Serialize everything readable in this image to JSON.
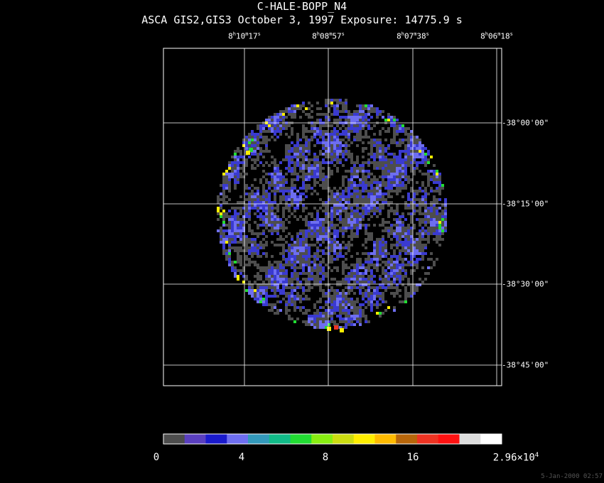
{
  "title": "C-HALE-BOPP_N4",
  "subtitle": "ASCA GIS2,GIS3 October 3, 1997 Exposure: 14775.9 s",
  "ra_ticks": [
    {
      "h": "8",
      "m": "10",
      "s": "17"
    },
    {
      "h": "8",
      "m": "08",
      "s": "57"
    },
    {
      "h": "8",
      "m": "07",
      "s": "38"
    },
    {
      "h": "8",
      "m": "06",
      "s": "18"
    }
  ],
  "dec_ticks": [
    "-38°00'00\"",
    "-38°15'00\"",
    "-38°30'00\"",
    "-38°45'00\""
  ],
  "colorbar": {
    "colors": [
      "#4d4d4d",
      "#5a3fbf",
      "#1a1acc",
      "#6e6ef0",
      "#3399bb",
      "#11bb88",
      "#22dd33",
      "#88ee11",
      "#ccdd11",
      "#ffee00",
      "#ffbb00",
      "#b8660a",
      "#ee3322",
      "#ff1111",
      "#dddddd",
      "#ffffff"
    ],
    "labels": [
      "0",
      "4",
      "8",
      "16"
    ],
    "max_mantissa": "2.96×10",
    "max_exponent": "4"
  },
  "image_palette": {
    "background": "#000000",
    "low": "#4d4d4d",
    "mid": "#3a3ad0",
    "hi": "#6e6ef0",
    "hot1": "#22dd33",
    "hot2": "#ffee00",
    "hot3": "#ee3322"
  },
  "timestamp": "5-Jan-2000 02:57"
}
